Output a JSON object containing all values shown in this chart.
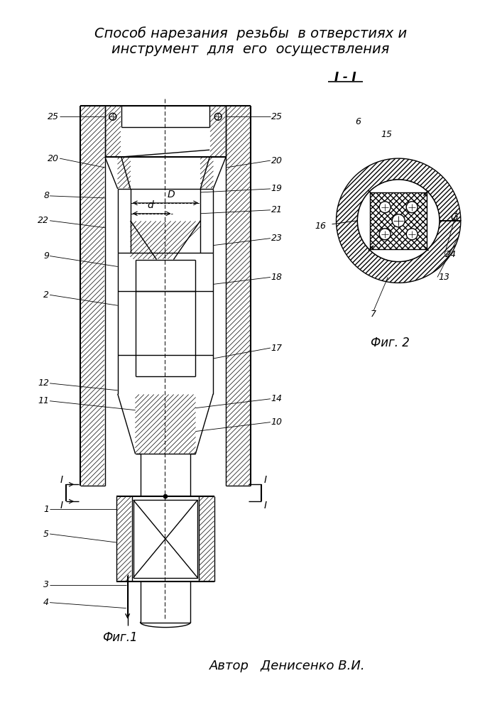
{
  "title_line1": "Способ нарезания  резьбы  в отверстиях и",
  "title_line2": "инструмент  для  его  осуществления",
  "fig1_label": "Фиг.1",
  "fig2_label": "Фиг. 2",
  "section_label": "I - I",
  "author_label": "Автор   Денисенко В.И.",
  "bg_color": "#ffffff",
  "line_color": "#000000",
  "font_size_title": 14,
  "font_size_numbers": 9
}
